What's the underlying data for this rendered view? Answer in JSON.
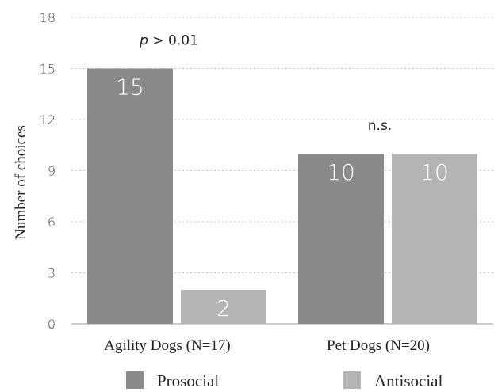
{
  "chart_data": {
    "type": "bar",
    "categories": [
      "Agility Dogs (N=17)",
      "Pet Dogs (N=20)"
    ],
    "series": [
      {
        "name": "Prosocial",
        "values": [
          15,
          10
        ],
        "color": "#8a8a8a"
      },
      {
        "name": "Antisocial",
        "values": [
          2,
          10
        ],
        "color": "#b4b4b4"
      }
    ],
    "data_labels": [
      [
        "15",
        "10"
      ],
      [
        "2",
        "10"
      ]
    ],
    "ylabel": "Number of choices",
    "xlabel": "",
    "ylim": [
      0,
      18
    ],
    "yticks": [
      0,
      3,
      6,
      9,
      12,
      15,
      18
    ],
    "grid": "horizontal dotted",
    "legend": "bottom",
    "annotations": [
      {
        "category": "Agility Dogs (N=17)",
        "p_symbol": "p",
        "text": " > 0.01"
      },
      {
        "category": "Pet Dogs (N=20)",
        "p_symbol": "",
        "text": "n.s."
      }
    ]
  }
}
